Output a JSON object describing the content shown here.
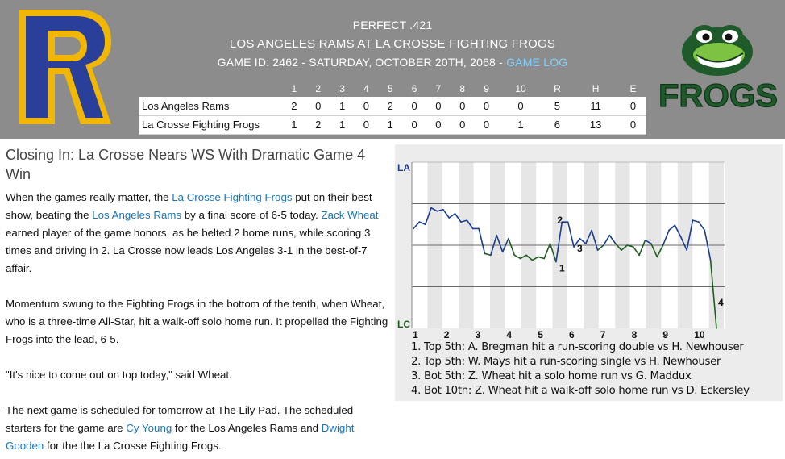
{
  "header": {
    "line1": "PERFECT .421",
    "line2": "LOS ANGELES RAMS AT LA CROSSE FIGHTING FROGS",
    "line3": "GAME ID: 2462 - SATURDAY, OCTOBER 20TH, 2068 - ",
    "game_log_link": "GAME LOG",
    "logo_left_letter": "R",
    "logo_right_text": "FROGS"
  },
  "scoreboard": {
    "columns": [
      "",
      "1",
      "2",
      "3",
      "4",
      "5",
      "6",
      "7",
      "8",
      "9",
      "10",
      "R",
      "H",
      "E"
    ],
    "rows": [
      {
        "team": "Los Angeles Rams",
        "cells": [
          "2",
          "0",
          "1",
          "0",
          "2",
          "0",
          "0",
          "0",
          "0",
          "0",
          "5",
          "11",
          "0"
        ]
      },
      {
        "team": "La Crosse Fighting Frogs",
        "cells": [
          "1",
          "2",
          "1",
          "0",
          "1",
          "0",
          "0",
          "0",
          "0",
          "1",
          "6",
          "13",
          "0"
        ]
      }
    ]
  },
  "article": {
    "headline": "Closing In: La Crosse Nears WS With Dramatic Game 4 Win",
    "p1": {
      "t1": "When the games really matter, the ",
      "l1": "La Crosse Fighting Frogs",
      "t2": " put on their best show, beating the ",
      "l2": "Los Angeles Rams",
      "t3": " by a final score of 6-5 today. ",
      "l3": "Zack Wheat",
      "t4": " earned player of the game honors, as he belted 2 home runs, while scoring 3 times and driving in 2. La Crosse now leads Los Angeles 3-1 in the best-of-7 affair."
    },
    "p2": "Momentum swung to the Fighting Frogs in the bottom of the tenth, when Wheat, who is a three-time All-Star, hit a walk-off solo home run. It propelled the Fighting Frogs into the lead, 6-5.",
    "p3": "\"It's nice to come out on top today,\" said Wheat.",
    "p4": {
      "t1": "The next game is scheduled for tomorrow at The Lily Pad. The scheduled starters for the game are ",
      "l1": "Cy Young",
      "t2": " for the Los Angeles Rams and ",
      "l2": "Dwight Gooden",
      "t3": " for the the La Crosse Fighting Frogs."
    }
  },
  "chart_data": {
    "type": "line",
    "title": "",
    "y_top_label": "LA",
    "y_bottom_label": "LC",
    "innings": [
      "1",
      "2",
      "3",
      "4",
      "5",
      "6",
      "7",
      "8",
      "9",
      "10"
    ],
    "ylim": [
      -1,
      1
    ],
    "colors": {
      "la": "#1a3d8f",
      "lc": "#1e5e1e"
    },
    "series": [
      {
        "values": [
          0.2,
          0.28,
          0.25,
          0.45,
          0.41,
          0.43,
          0.33,
          0.38,
          0.28,
          0.3,
          0.2,
          0.2,
          -0.1,
          -0.12,
          0.12,
          -0.08,
          0.08,
          -0.12,
          -0.16,
          -0.12,
          -0.18,
          -0.14,
          -0.16,
          0.02,
          -0.2,
          0.28,
          0.28,
          -0.02,
          0.08,
          0.02,
          0.18,
          -0.06,
          0.0,
          0.12,
          0.02,
          -0.06,
          0.0,
          -0.02,
          -0.12,
          0.06,
          0.02,
          -0.14,
          0.0,
          0.18,
          0.24,
          0.1,
          -0.06,
          0.3,
          0.28,
          0.18,
          -0.18,
          -1.0
        ]
      }
    ],
    "events": [
      {
        "label": "1",
        "text": "1. Top 5th: A. Bregman hit a run-scoring double vs H. Newhouser"
      },
      {
        "label": "2",
        "text": "2. Top 5th: W. Mays hit a run-scoring single vs H. Newhouser"
      },
      {
        "label": "3",
        "text": "3. Bot 5th: Z. Wheat hit a solo home run vs G. Maddux"
      },
      {
        "label": "4",
        "text": "4. Bot 10th: Z. Wheat hit a walk-off solo home run vs D. Eckersley"
      }
    ]
  }
}
